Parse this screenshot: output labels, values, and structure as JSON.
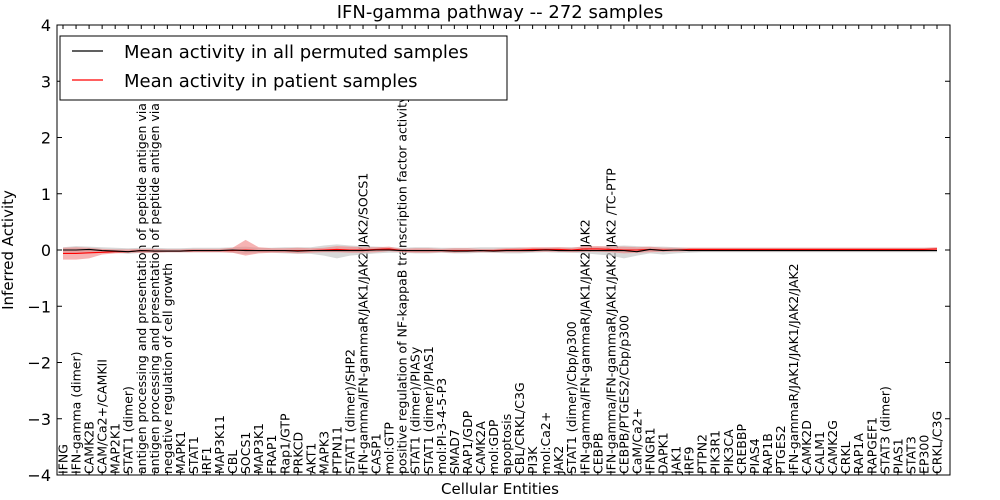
{
  "chart_data": {
    "type": "line",
    "title": "IFN-gamma pathway -- 272 samples",
    "xlabel": "Cellular Entities",
    "ylabel": "Inferred Activity",
    "ylim": [
      -4,
      4
    ],
    "yticks": [
      -4,
      -3,
      -2,
      -1,
      0,
      1,
      2,
      3,
      4
    ],
    "ytick_labels": [
      "−4",
      "−3",
      "−2",
      "−1",
      "0",
      "1",
      "2",
      "3",
      "4"
    ],
    "legend_position": "top-left",
    "grid": false,
    "categories": [
      "IFNG",
      "IFN-gamma (dimer)",
      "CAMK2B",
      "CAM/Ca2+/CAMKII",
      "MAP2K1",
      "STAT1 (dimer)",
      "antigen processing and presentation of peptide antigen via MHC class",
      "antigen processing and presentation of peptide antigen via MHC class",
      "negative regulation of cell growth",
      "MAPK1",
      "STAT1",
      "IRF1",
      "MAP3K11",
      "CBL",
      "SOCS1",
      "MAP3K1",
      "FRAP1",
      "Rap1/GTP",
      "PRKCD",
      "AKT1",
      "MAPK3",
      "PTPN11",
      "STAT1 (dimer)/SHP2",
      "IFN-gamma/IFN-gammaR/JAK1/JAK2/JAK2/SOCS1",
      "CASP1",
      "mol:GTP",
      "positive regulation of NF-kappaB transcription factor activity",
      "STAT1 (dimer)/PIASy",
      "STAT1 (dimer)/PIAS1",
      "mol:PI-3-4-5-P3",
      "SMAD7",
      "RAP1/GDP",
      "CAMK2A",
      "mol:GDP",
      "apoptosis",
      "CBL/CRKL/C3G",
      "PI3K",
      "mol:Ca2+",
      "JAK2",
      "STAT1 (dimer)/Cbp/p300",
      "IFN-gamma/IFN-gammaR/JAK1/JAK2/JAK2",
      "CEBPB",
      "IFN-gamma/IFN-gammaR/JAK1/JAK2/JAK2 /TC-PTP",
      "CEBPB/PTGES2/Cbp/p300",
      "CaM/Ca2+",
      "IFNGR1",
      "DAPK1",
      "JAK1",
      "IRF9",
      "PTPN2",
      "PIK3R1",
      "PIK3CA",
      "CREBBP",
      "PIAS4",
      "RAP1B",
      "PTGES2",
      "IFN-gammaR/JAK1/JAK1/JAK2/JAK2",
      "CAMK2D",
      "CALM1",
      "CAMK2G",
      "CRKL",
      "RAP1A",
      "RAPGEF1",
      "STAT3 (dimer)",
      "PIAS1",
      "STAT3",
      "EP300",
      "CRKL/C3G"
    ],
    "series": [
      {
        "name": "Mean activity in all permuted samples",
        "color": "#000000",
        "values": [
          0.0,
          0.0,
          0.01,
          -0.01,
          -0.02,
          -0.03,
          -0.01,
          -0.02,
          -0.02,
          -0.02,
          -0.01,
          -0.01,
          -0.01,
          0.0,
          -0.01,
          -0.01,
          -0.01,
          -0.01,
          -0.02,
          -0.01,
          -0.01,
          -0.01,
          -0.01,
          -0.01,
          0.0,
          0.0,
          -0.01,
          -0.01,
          -0.01,
          -0.01,
          -0.02,
          -0.02,
          -0.01,
          -0.02,
          -0.01,
          -0.01,
          -0.01,
          0.0,
          -0.01,
          -0.01,
          -0.01,
          -0.01,
          -0.01,
          -0.01,
          -0.03,
          0.01,
          -0.01,
          0.0,
          -0.01,
          -0.01,
          -0.01,
          -0.01,
          -0.01,
          -0.01,
          -0.01,
          -0.01,
          -0.01,
          -0.01,
          -0.01,
          -0.01,
          -0.01,
          -0.01,
          -0.01,
          -0.01,
          -0.01,
          -0.01,
          -0.01,
          -0.01
        ],
        "band_low": [
          -0.05,
          -0.07,
          -0.06,
          -0.05,
          -0.05,
          -0.07,
          -0.05,
          -0.05,
          -0.04,
          -0.04,
          -0.04,
          -0.04,
          -0.04,
          -0.05,
          -0.07,
          -0.05,
          -0.05,
          -0.06,
          -0.07,
          -0.07,
          -0.1,
          -0.15,
          -0.1,
          -0.08,
          -0.06,
          -0.05,
          -0.05,
          -0.06,
          -0.06,
          -0.05,
          -0.06,
          -0.06,
          -0.05,
          -0.05,
          -0.06,
          -0.06,
          -0.05,
          -0.04,
          -0.05,
          -0.05,
          -0.06,
          -0.08,
          -0.1,
          -0.15,
          -0.1,
          -0.06,
          -0.08,
          -0.06,
          -0.05,
          -0.04,
          -0.04,
          -0.04,
          -0.04,
          -0.04,
          -0.04,
          -0.04,
          -0.04,
          -0.04,
          -0.04,
          -0.04,
          -0.04,
          -0.04,
          -0.04,
          -0.04,
          -0.04,
          -0.04,
          -0.04,
          -0.04
        ],
        "band_high": [
          0.05,
          0.07,
          0.06,
          0.05,
          0.04,
          0.03,
          0.04,
          0.04,
          0.03,
          0.03,
          0.04,
          0.04,
          0.04,
          0.05,
          0.06,
          0.04,
          0.04,
          0.05,
          0.05,
          0.05,
          0.08,
          0.1,
          0.08,
          0.07,
          0.06,
          0.05,
          0.04,
          0.05,
          0.05,
          0.04,
          0.04,
          0.04,
          0.05,
          0.05,
          0.05,
          0.05,
          0.04,
          0.04,
          0.05,
          0.05,
          0.05,
          0.06,
          0.07,
          0.08,
          0.07,
          0.06,
          0.06,
          0.05,
          0.04,
          0.04,
          0.04,
          0.04,
          0.04,
          0.04,
          0.04,
          0.04,
          0.04,
          0.04,
          0.04,
          0.04,
          0.04,
          0.04,
          0.04,
          0.04,
          0.04,
          0.04,
          0.04,
          0.04
        ],
        "band_color": "#c8c8c8"
      },
      {
        "name": "Mean activity in patient samples",
        "color": "#ff0000",
        "values": [
          -0.06,
          -0.06,
          -0.05,
          -0.04,
          -0.03,
          -0.03,
          -0.01,
          -0.02,
          -0.02,
          -0.02,
          -0.01,
          -0.01,
          -0.01,
          -0.01,
          0.0,
          -0.01,
          -0.01,
          -0.01,
          -0.01,
          -0.01,
          0.0,
          0.01,
          0.0,
          0.0,
          0.01,
          0.02,
          -0.01,
          -0.01,
          -0.01,
          -0.01,
          -0.01,
          -0.01,
          -0.01,
          -0.01,
          0.0,
          0.0,
          0.01,
          0.01,
          0.01,
          0.0,
          0.02,
          0.02,
          0.01,
          0.0,
          0.0,
          0.01,
          0.0,
          0.0,
          0.01,
          0.01,
          0.01,
          0.01,
          0.01,
          0.01,
          0.01,
          0.01,
          0.01,
          0.01,
          0.01,
          0.01,
          0.01,
          0.01,
          0.01,
          0.01,
          0.01,
          0.01,
          0.01,
          0.02
        ],
        "band_low": [
          -0.17,
          -0.17,
          -0.15,
          -0.08,
          -0.06,
          -0.05,
          -0.05,
          -0.05,
          -0.04,
          -0.04,
          -0.04,
          -0.04,
          -0.04,
          -0.05,
          -0.1,
          -0.06,
          -0.05,
          -0.05,
          -0.06,
          -0.05,
          -0.04,
          -0.04,
          -0.05,
          -0.05,
          -0.04,
          -0.02,
          -0.04,
          -0.05,
          -0.05,
          -0.04,
          -0.05,
          -0.04,
          -0.04,
          -0.04,
          -0.04,
          -0.04,
          -0.03,
          -0.03,
          -0.03,
          -0.04,
          -0.03,
          -0.03,
          -0.04,
          -0.06,
          -0.05,
          -0.04,
          -0.03,
          -0.03,
          -0.02,
          -0.02,
          -0.02,
          -0.02,
          -0.02,
          -0.02,
          -0.02,
          -0.02,
          -0.02,
          -0.02,
          -0.02,
          -0.02,
          -0.02,
          -0.02,
          -0.02,
          -0.02,
          -0.02,
          -0.02,
          -0.02,
          -0.01
        ],
        "band_high": [
          0.04,
          0.05,
          0.04,
          0.02,
          0.01,
          0.01,
          0.02,
          0.02,
          0.01,
          0.01,
          0.02,
          0.02,
          0.02,
          0.04,
          0.18,
          0.05,
          0.03,
          0.03,
          0.04,
          0.03,
          0.04,
          0.07,
          0.06,
          0.05,
          0.05,
          0.06,
          0.02,
          0.03,
          0.03,
          0.02,
          0.03,
          0.03,
          0.02,
          0.02,
          0.03,
          0.04,
          0.05,
          0.05,
          0.05,
          0.04,
          0.07,
          0.07,
          0.06,
          0.06,
          0.05,
          0.06,
          0.04,
          0.04,
          0.04,
          0.04,
          0.04,
          0.04,
          0.04,
          0.04,
          0.04,
          0.04,
          0.04,
          0.04,
          0.04,
          0.04,
          0.04,
          0.04,
          0.04,
          0.04,
          0.04,
          0.04,
          0.04,
          0.05
        ],
        "band_color": "#f08080"
      }
    ]
  }
}
